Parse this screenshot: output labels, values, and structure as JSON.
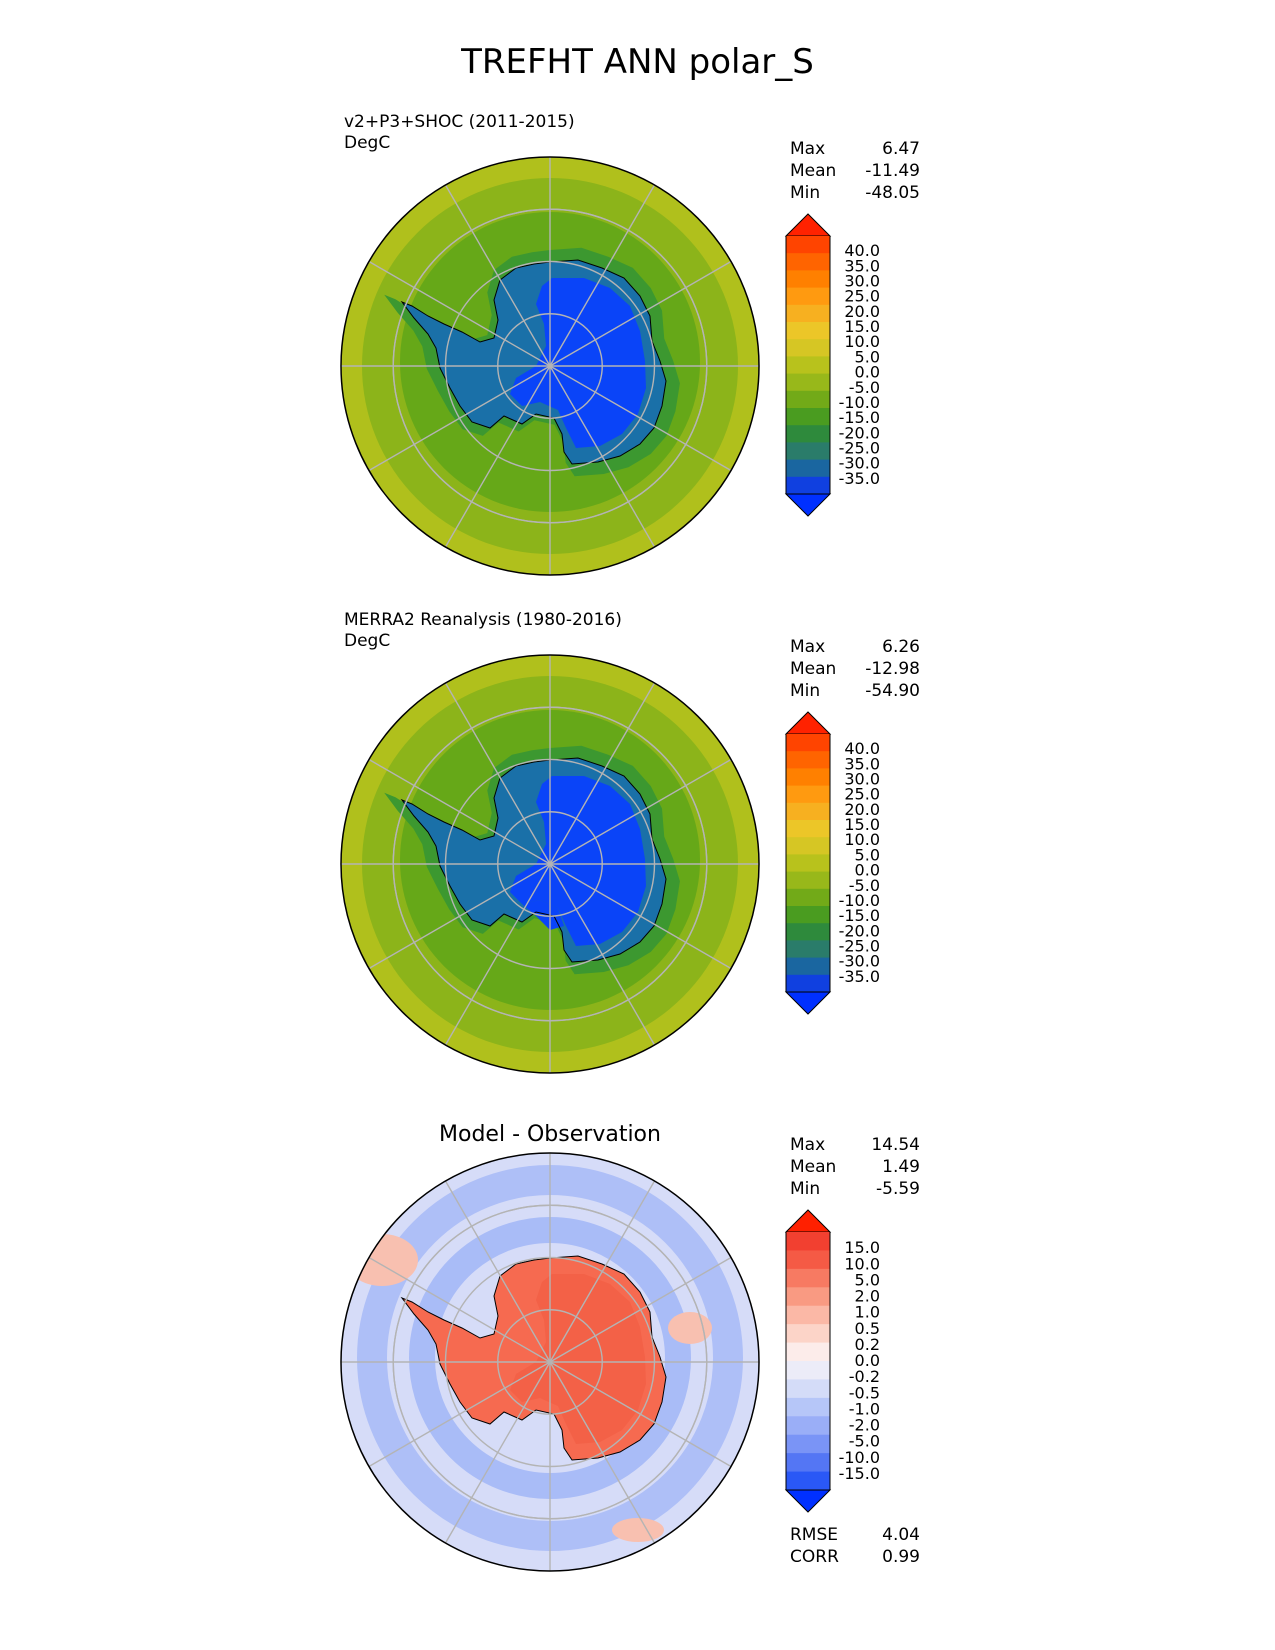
{
  "figure": {
    "title": "TREFHT ANN polar_S"
  },
  "panels": [
    {
      "id": "test",
      "name_line": "v2+P3+SHOC (2011-2015)",
      "units": "DegC",
      "stats": [
        {
          "label": "Max",
          "value": "6.47"
        },
        {
          "label": "Mean",
          "value": "-11.49"
        },
        {
          "label": "Min",
          "value": "-48.05"
        }
      ]
    },
    {
      "id": "ref",
      "name_line": "MERRA2 Reanalysis (1980-2016)",
      "units": "DegC",
      "stats": [
        {
          "label": "Max",
          "value": "6.26"
        },
        {
          "label": "Mean",
          "value": "-12.98"
        },
        {
          "label": "Min",
          "value": "-54.90"
        }
      ]
    },
    {
      "id": "diff",
      "title": "Model - Observation",
      "stats": [
        {
          "label": "Max",
          "value": "14.54"
        },
        {
          "label": "Mean",
          "value": "1.49"
        },
        {
          "label": "Min",
          "value": "-5.59"
        }
      ],
      "metrics": [
        {
          "label": "RMSE",
          "value": "4.04"
        },
        {
          "label": "CORR",
          "value": "0.99"
        }
      ]
    }
  ],
  "colorbars": {
    "temperature": {
      "labels": [
        "40.0",
        "35.0",
        "30.0",
        "25.0",
        "20.0",
        "15.0",
        "10.0",
        "5.0",
        "0.0",
        "-5.0",
        "-10.0",
        "-15.0",
        "-20.0",
        "-25.0",
        "-30.0",
        "-35.0"
      ],
      "colors": [
        "#ff2200",
        "#ff4400",
        "#ff6400",
        "#ff8000",
        "#ff9a10",
        "#f7b020",
        "#ecc628",
        "#d6c624",
        "#b8c21c",
        "#98b81a",
        "#72aa18",
        "#4a9c20",
        "#2e8a3c",
        "#2a7c6a",
        "#1a66a0",
        "#1040e0",
        "#0030ff"
      ]
    },
    "difference": {
      "labels": [
        "15.0",
        "10.0",
        "5.0",
        "2.0",
        "1.0",
        "0.5",
        "0.2",
        "0.0",
        "-0.2",
        "-0.5",
        "-1.0",
        "-2.0",
        "-5.0",
        "-10.0",
        "-15.0"
      ],
      "colors": [
        "#ff2000",
        "#f24030",
        "#f55a45",
        "#f77a62",
        "#f99a82",
        "#fbb8a6",
        "#fcd4c8",
        "#fcecea",
        "#ececf8",
        "#d4dcf8",
        "#b6c6f8",
        "#9aaef7",
        "#7a94f6",
        "#5476f4",
        "#2a58f6",
        "#0030ff"
      ]
    }
  },
  "map_colors": {
    "ocean_warm": "#b0c01c",
    "ocean_mid": "#8cb41a",
    "ocean_cold": "#66a818",
    "coast_band": "#3c9830",
    "ice_edge": "#1a70a8",
    "ice_interior": "#0a44f8",
    "diff_ocean": "#d6dcf8",
    "diff_ocean_band": "#a4b8f6",
    "diff_land": "#f66a50",
    "diff_land_dark": "#f05a40",
    "diff_warm_patch": "#f8c0b0"
  },
  "grid": {
    "parallels_deg": [
      -60,
      -70,
      -80
    ],
    "meridians_deg": [
      0,
      30,
      60,
      90,
      120,
      150,
      180,
      210,
      240,
      270,
      300,
      330
    ]
  }
}
